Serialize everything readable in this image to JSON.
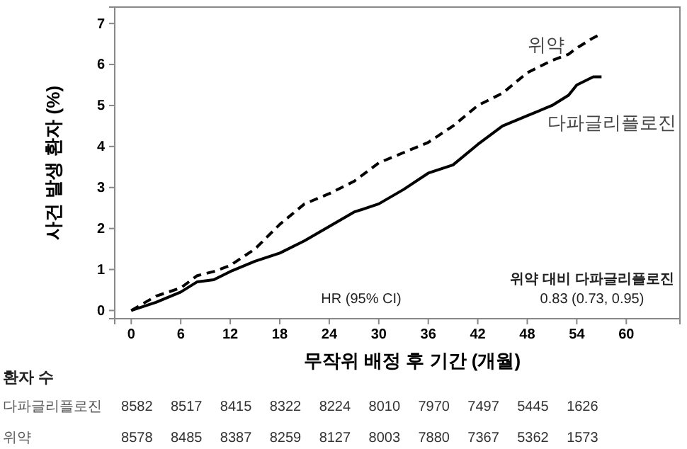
{
  "chart_data": {
    "type": "line",
    "xlabel": "무작위 배정 후 기간 (개월)",
    "ylabel": "사건 발생 환자 (%)",
    "xlim": [
      -2,
      66.5
    ],
    "ylim": [
      -0.2,
      7.4
    ],
    "xticks": [
      0,
      6,
      12,
      18,
      24,
      30,
      36,
      42,
      48,
      54,
      60
    ],
    "yticks": [
      0,
      1,
      2,
      3,
      4,
      5,
      6,
      7
    ],
    "x": [
      0,
      3,
      6,
      8,
      10,
      12,
      15,
      18,
      21,
      24,
      27,
      30,
      33,
      36,
      39,
      42,
      45,
      48,
      51,
      53,
      54,
      56,
      57
    ],
    "series": [
      {
        "name": "위약",
        "color": "#000000",
        "line_style": "dashed",
        "values": [
          0,
          0.35,
          0.55,
          0.85,
          0.95,
          1.1,
          1.5,
          2.1,
          2.6,
          2.85,
          3.15,
          3.6,
          3.85,
          4.1,
          4.5,
          5.0,
          5.3,
          5.8,
          6.1,
          6.25,
          6.4,
          6.65,
          6.75
        ]
      },
      {
        "name": "다파글리플로진",
        "color": "#000000",
        "line_style": "solid",
        "values": [
          0,
          0.2,
          0.45,
          0.7,
          0.75,
          0.95,
          1.2,
          1.4,
          1.7,
          2.05,
          2.4,
          2.6,
          2.95,
          3.35,
          3.55,
          4.05,
          4.5,
          4.75,
          5.0,
          5.25,
          5.5,
          5.7,
          5.7
        ]
      }
    ],
    "annotations": [
      "HR (95% CI)",
      "위약 대비 다파글리플로진",
      "0.83 (0.73, 0.95)",
      "환자 수",
      "다파글리플로진",
      "8582",
      "8517",
      "8415",
      "8322",
      "8224",
      "8010",
      "7970",
      "7497",
      "5445",
      "1626",
      "위약",
      "8578",
      "8485",
      "8387",
      "8259",
      "8127",
      "8003",
      "7880",
      "7367",
      "5362",
      "1573"
    ]
  }
}
